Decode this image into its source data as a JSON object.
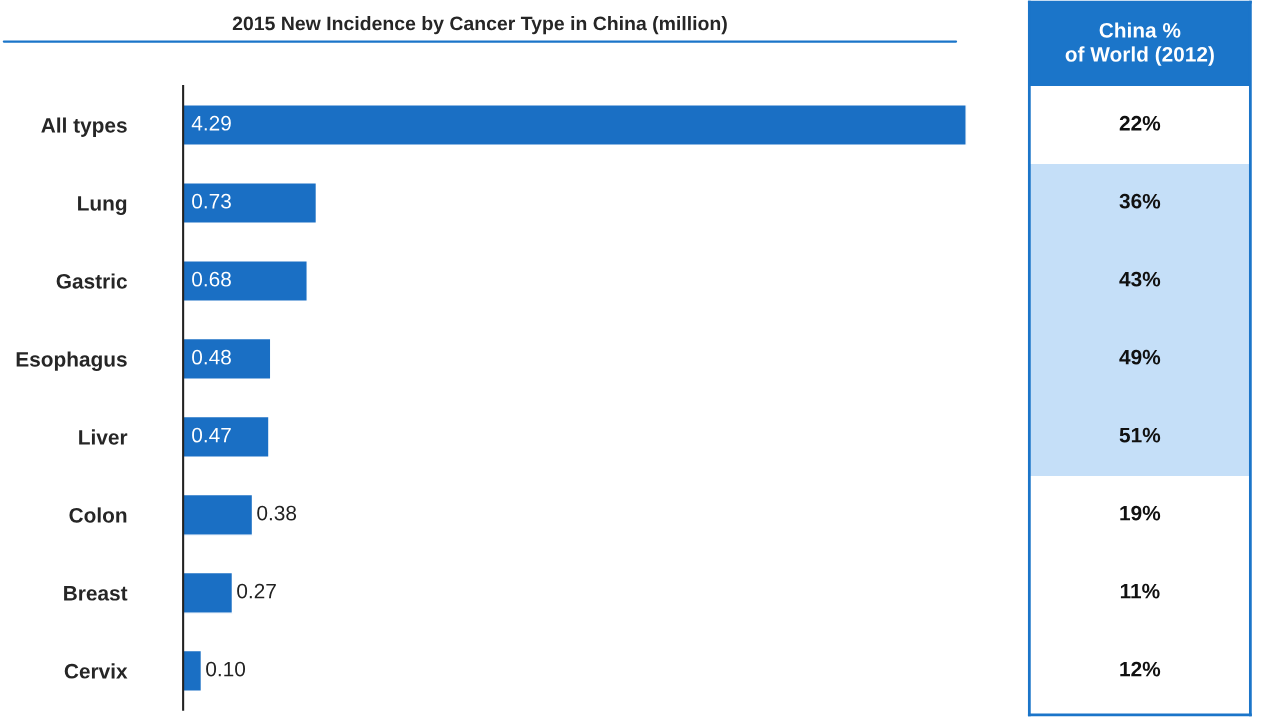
{
  "chart_data": [
    {
      "type": "bar",
      "orientation": "horizontal",
      "title": "2015 New Incidence by Cancer Type in China (million)",
      "categories": [
        "All types",
        "Lung",
        "Gastric",
        "Esophagus",
        "Liver",
        "Colon",
        "Breast",
        "Cervix"
      ],
      "values": [
        4.29,
        0.73,
        0.68,
        0.48,
        0.47,
        0.38,
        0.27,
        0.1
      ],
      "color": "#1a6fc4",
      "value_labels": [
        "4.29",
        "0.73",
        "0.68",
        "0.48",
        "0.47",
        "0.38",
        "0.27",
        "0.10"
      ],
      "xlim": [
        0,
        4.29
      ],
      "tick_labels": "y"
    },
    {
      "type": "other",
      "title": "China %\nof World (2012)",
      "color": "#1b75c9",
      "annotations": [
        "22%",
        "36%",
        "43%",
        "49%",
        "51%",
        "19%",
        "11%",
        "12%"
      ],
      "colors": [
        "#ffffff",
        "#c5dff8",
        "#c5dff8",
        "#c5dff8",
        "#c5dff8",
        "#ffffff",
        "#ffffff",
        "#ffffff"
      ]
    }
  ]
}
